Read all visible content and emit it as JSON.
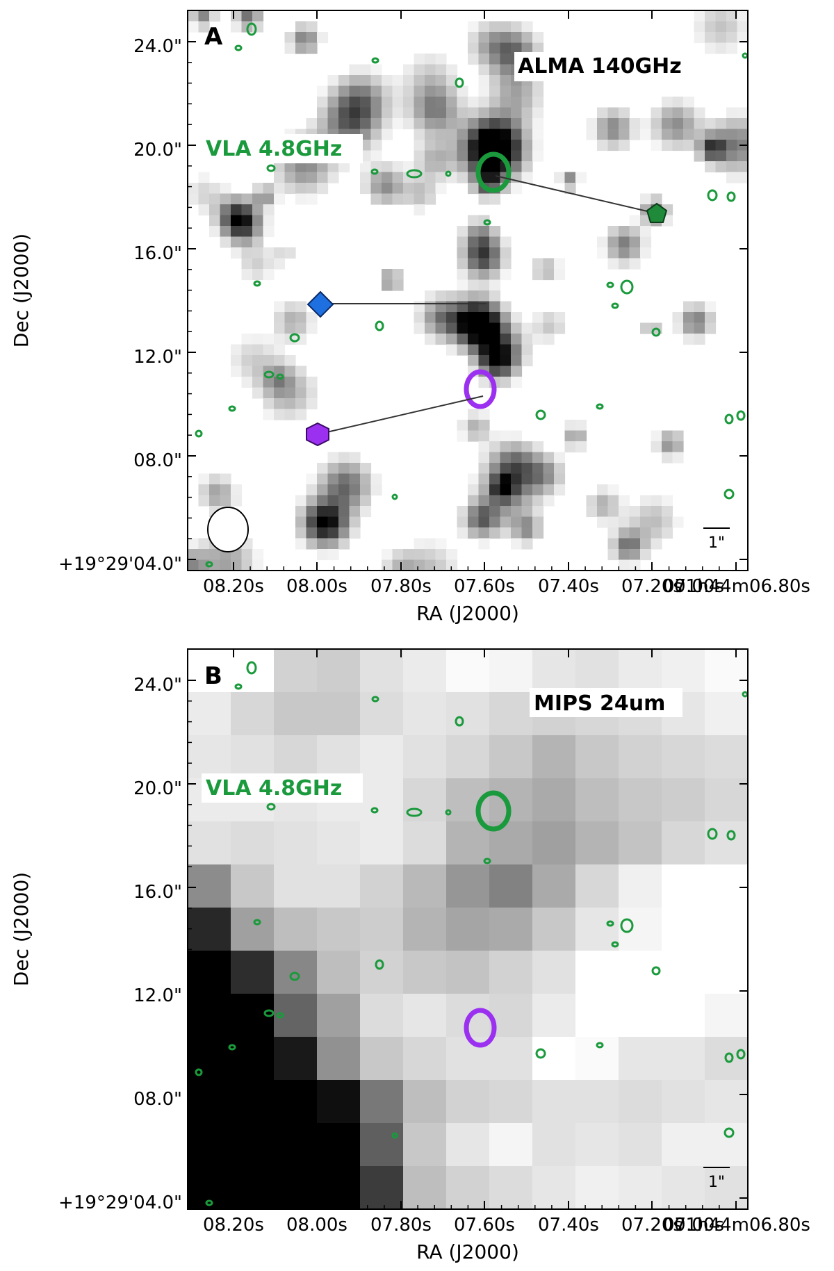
{
  "panels": [
    {
      "letter": "A",
      "instrument": "ALMA 140GHz",
      "contour_label": "VLA 4.8GHz",
      "image_kind": "noisy-greyscale",
      "ra_ticks": [
        "08.20s",
        "08.00s",
        "07.80s",
        "07.60s",
        "07.40s",
        "07.20s",
        "07.00s",
        "01h44m06.80s"
      ],
      "dec_ticks": [
        "+19°29'04.0\"",
        "08.0\"",
        "12.0\"",
        "16.0\"",
        "20.0\"",
        "24.0\""
      ],
      "xlabel": "RA (J2000)",
      "ylabel": "Dec (J2000)",
      "scale_bar": "1\"",
      "beam": true,
      "markers": [
        "green-pentagon",
        "blue-diamond",
        "purple-hexagon"
      ]
    },
    {
      "letter": "B",
      "instrument": "MIPS 24um",
      "contour_label": "VLA 4.8GHz",
      "image_kind": "coarse-greyscale",
      "ra_ticks": [
        "08.20s",
        "08.00s",
        "07.80s",
        "07.60s",
        "07.40s",
        "07.20s",
        "07.00s",
        "01h44m06.80s"
      ],
      "dec_ticks": [
        "+19°29'04.0\"",
        "08.0\"",
        "12.0\"",
        "16.0\"",
        "20.0\"",
        "24.0\""
      ],
      "xlabel": "RA (J2000)",
      "ylabel": "Dec (J2000)",
      "scale_bar": "1\"",
      "beam": false,
      "markers": []
    }
  ],
  "colors": {
    "vla_contour": "#1a9a3c",
    "purple_source": "#9b30f0",
    "blue_marker": "#1e6fe0",
    "green_marker": "#1e8a3a",
    "purple_marker": "#9b30f0"
  }
}
